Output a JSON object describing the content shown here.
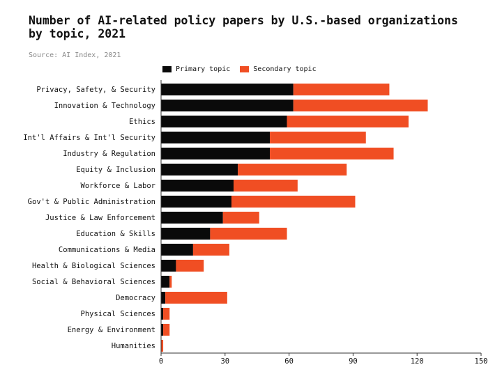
{
  "title": "Number of AI-related policy papers by U.S.-based organizations by topic, 2021",
  "source": "Source: AI Index, 2021",
  "colors": {
    "primary": "#0a0a0a",
    "secondary": "#f04e23",
    "axis": "#333333"
  },
  "chart_data": {
    "type": "bar",
    "orientation": "horizontal",
    "stacked": true,
    "categories": [
      "Privacy, Safety, & Security",
      "Innovation & Technology",
      "Ethics",
      "Int'l Affairs & Int'l Security",
      "Industry & Regulation",
      "Equity & Inclusion",
      "Workforce & Labor",
      "Gov't & Public Administration",
      "Justice & Law Enforcement",
      "Education & Skills",
      "Communications & Media",
      "Health & Biological Sciences",
      "Social & Behavioral Sciences",
      "Democracy",
      "Physical Sciences",
      "Energy & Environment",
      "Humanities"
    ],
    "series": [
      {
        "name": "Primary topic",
        "values": [
          62,
          62,
          59,
          51,
          51,
          36,
          34,
          33,
          29,
          23,
          15,
          7,
          4,
          2,
          1,
          1,
          0
        ]
      },
      {
        "name": "Secondary topic",
        "values": [
          45,
          63,
          57,
          45,
          58,
          51,
          30,
          58,
          17,
          36,
          17,
          13,
          1,
          29,
          3,
          3,
          1
        ]
      }
    ],
    "xlim": [
      0,
      150
    ],
    "xticks": [
      0,
      30,
      60,
      90,
      120,
      150
    ],
    "legend_position": "top"
  }
}
